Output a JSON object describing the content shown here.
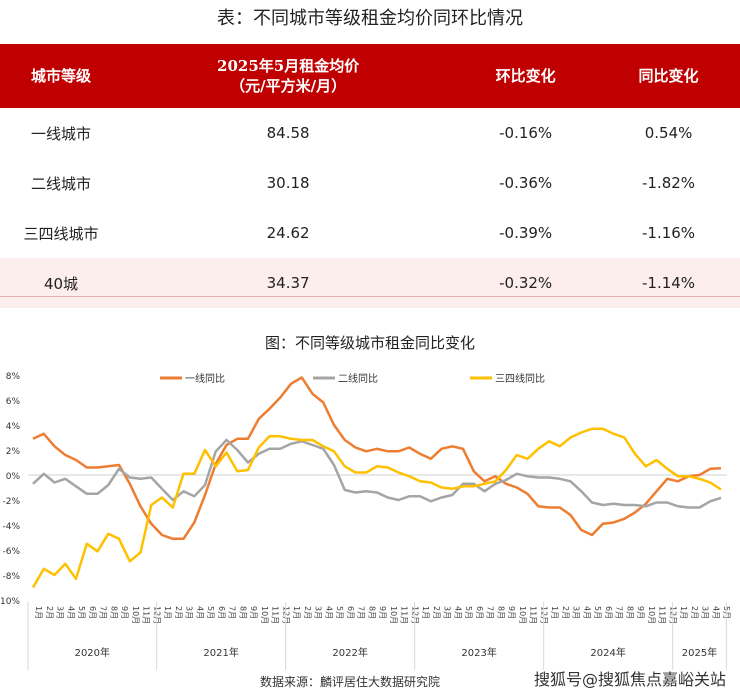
{
  "table": {
    "title": "表：不同城市等级租金均价同环比情况",
    "headers": [
      "城市等级",
      "2025年5月租金均价",
      "（元/平方米/月）",
      "环比变化",
      "同比变化"
    ],
    "rows": [
      {
        "tier": "一线城市",
        "price": "84.58",
        "mom": "-0.16%",
        "yoy": "0.54%"
      },
      {
        "tier": "二线城市",
        "price": "30.18",
        "mom": "-0.36%",
        "yoy": "-1.82%"
      },
      {
        "tier": "三四线城市",
        "price": "24.62",
        "mom": "-0.39%",
        "yoy": "-1.16%"
      },
      {
        "tier": "40城",
        "price": "34.37",
        "mom": "-0.32%",
        "yoy": "-1.14%"
      }
    ],
    "highlight_color": "#c00000"
  },
  "chart_data": {
    "type": "line",
    "title": "图：不同等级城市租金同比变化",
    "ylim": [
      -10,
      8
    ],
    "yticks": [
      "8%",
      "6%",
      "4%",
      "2%",
      "0%",
      "-2%",
      "-4%",
      "-6%",
      "-8%",
      "-10%"
    ],
    "ytick_values": [
      8,
      6,
      4,
      2,
      0,
      -2,
      -4,
      -6,
      -8,
      -10
    ],
    "legend_placement": "top",
    "years": [
      {
        "label": "2020年",
        "months": [
          "1月",
          "2月",
          "3月",
          "4月",
          "5月",
          "6月",
          "7月",
          "8月",
          "9月",
          "10月",
          "11月",
          "12月"
        ]
      },
      {
        "label": "2021年",
        "months": [
          "1月",
          "2月",
          "3月",
          "4月",
          "5月",
          "6月",
          "7月",
          "8月",
          "9月",
          "10月",
          "11月",
          "12月"
        ]
      },
      {
        "label": "2022年",
        "months": [
          "1月",
          "2月",
          "3月",
          "4月",
          "5月",
          "6月",
          "7月",
          "8月",
          "9月",
          "10月",
          "11月",
          "12月"
        ]
      },
      {
        "label": "2023年",
        "months": [
          "1月",
          "2月",
          "3月",
          "4月",
          "5月",
          "6月",
          "7月",
          "8月",
          "9月",
          "10月",
          "11月",
          "12月"
        ]
      },
      {
        "label": "2024年",
        "months": [
          "1月",
          "2月",
          "3月",
          "4月",
          "5月",
          "6月",
          "7月",
          "8月",
          "9月",
          "10月",
          "11月",
          "12月"
        ]
      },
      {
        "label": "2025年",
        "months": [
          "1月",
          "2月",
          "3月",
          "4月",
          "5月"
        ]
      }
    ],
    "series": [
      {
        "name": "一线同比",
        "color": "#ED7D31",
        "values": [
          2.9,
          3.3,
          2.3,
          1.6,
          1.2,
          0.6,
          0.6,
          0.7,
          0.8,
          -0.7,
          -2.5,
          -3.9,
          -4.8,
          -5.1,
          -5.1,
          -3.8,
          -1.6,
          0.9,
          2.4,
          2.9,
          2.9,
          4.5,
          5.3,
          6.2,
          7.3,
          7.8,
          6.5,
          5.8,
          4.0,
          2.8,
          2.2,
          1.9,
          2.1,
          1.9,
          1.9,
          2.2,
          1.7,
          1.3,
          2.1,
          2.3,
          2.1,
          0.3,
          -0.5,
          -0.1,
          -0.7,
          -1.0,
          -1.5,
          -2.5,
          -2.6,
          -2.6,
          -3.2,
          -4.4,
          -4.8,
          -3.9,
          -3.8,
          -3.5,
          -3.0,
          -2.3,
          -1.3,
          -0.3,
          -0.5,
          -0.1,
          0.0,
          0.5,
          0.54
        ]
      },
      {
        "name": "二线同比",
        "color": "#A5A5A5",
        "values": [
          -0.7,
          0.1,
          -0.6,
          -0.3,
          -0.9,
          -1.5,
          -1.5,
          -0.8,
          0.5,
          -0.2,
          -0.3,
          -0.2,
          -1.1,
          -2.0,
          -1.3,
          -1.7,
          -0.8,
          1.9,
          2.8,
          2.0,
          1.0,
          1.7,
          2.1,
          2.1,
          2.5,
          2.7,
          2.4,
          2.1,
          0.8,
          -1.2,
          -1.4,
          -1.3,
          -1.4,
          -1.8,
          -2.0,
          -1.7,
          -1.7,
          -2.1,
          -1.8,
          -1.6,
          -0.7,
          -0.7,
          -1.3,
          -0.7,
          -0.4,
          0.1,
          -0.1,
          -0.2,
          -0.2,
          -0.3,
          -0.5,
          -1.3,
          -2.2,
          -2.4,
          -2.3,
          -2.4,
          -2.4,
          -2.5,
          -2.2,
          -2.2,
          -2.5,
          -2.6,
          -2.6,
          -2.1,
          -1.82
        ]
      },
      {
        "name": "三四线同比",
        "color": "#FFC000",
        "values": [
          -9.0,
          -7.5,
          -8.0,
          -7.1,
          -8.3,
          -5.5,
          -6.1,
          -4.7,
          -5.1,
          -6.9,
          -6.2,
          -2.4,
          -1.8,
          -2.6,
          0.1,
          0.1,
          2.0,
          0.7,
          1.8,
          0.3,
          0.4,
          2.2,
          3.1,
          3.1,
          2.9,
          2.8,
          2.8,
          2.3,
          1.9,
          0.7,
          0.2,
          0.2,
          0.7,
          0.6,
          0.2,
          -0.1,
          -0.5,
          -0.6,
          -1.0,
          -1.1,
          -0.9,
          -0.9,
          -0.7,
          -0.5,
          0.4,
          1.6,
          1.3,
          2.1,
          2.7,
          2.3,
          3.0,
          3.4,
          3.7,
          3.7,
          3.3,
          3.0,
          1.7,
          0.7,
          1.2,
          0.5,
          -0.1,
          -0.1,
          -0.3,
          -0.6,
          -1.16
        ]
      }
    ]
  },
  "footer": {
    "source": "数据来源：麟评居住大数据研究院",
    "watermark": "搜狐号@搜狐焦点嘉峪关站"
  }
}
